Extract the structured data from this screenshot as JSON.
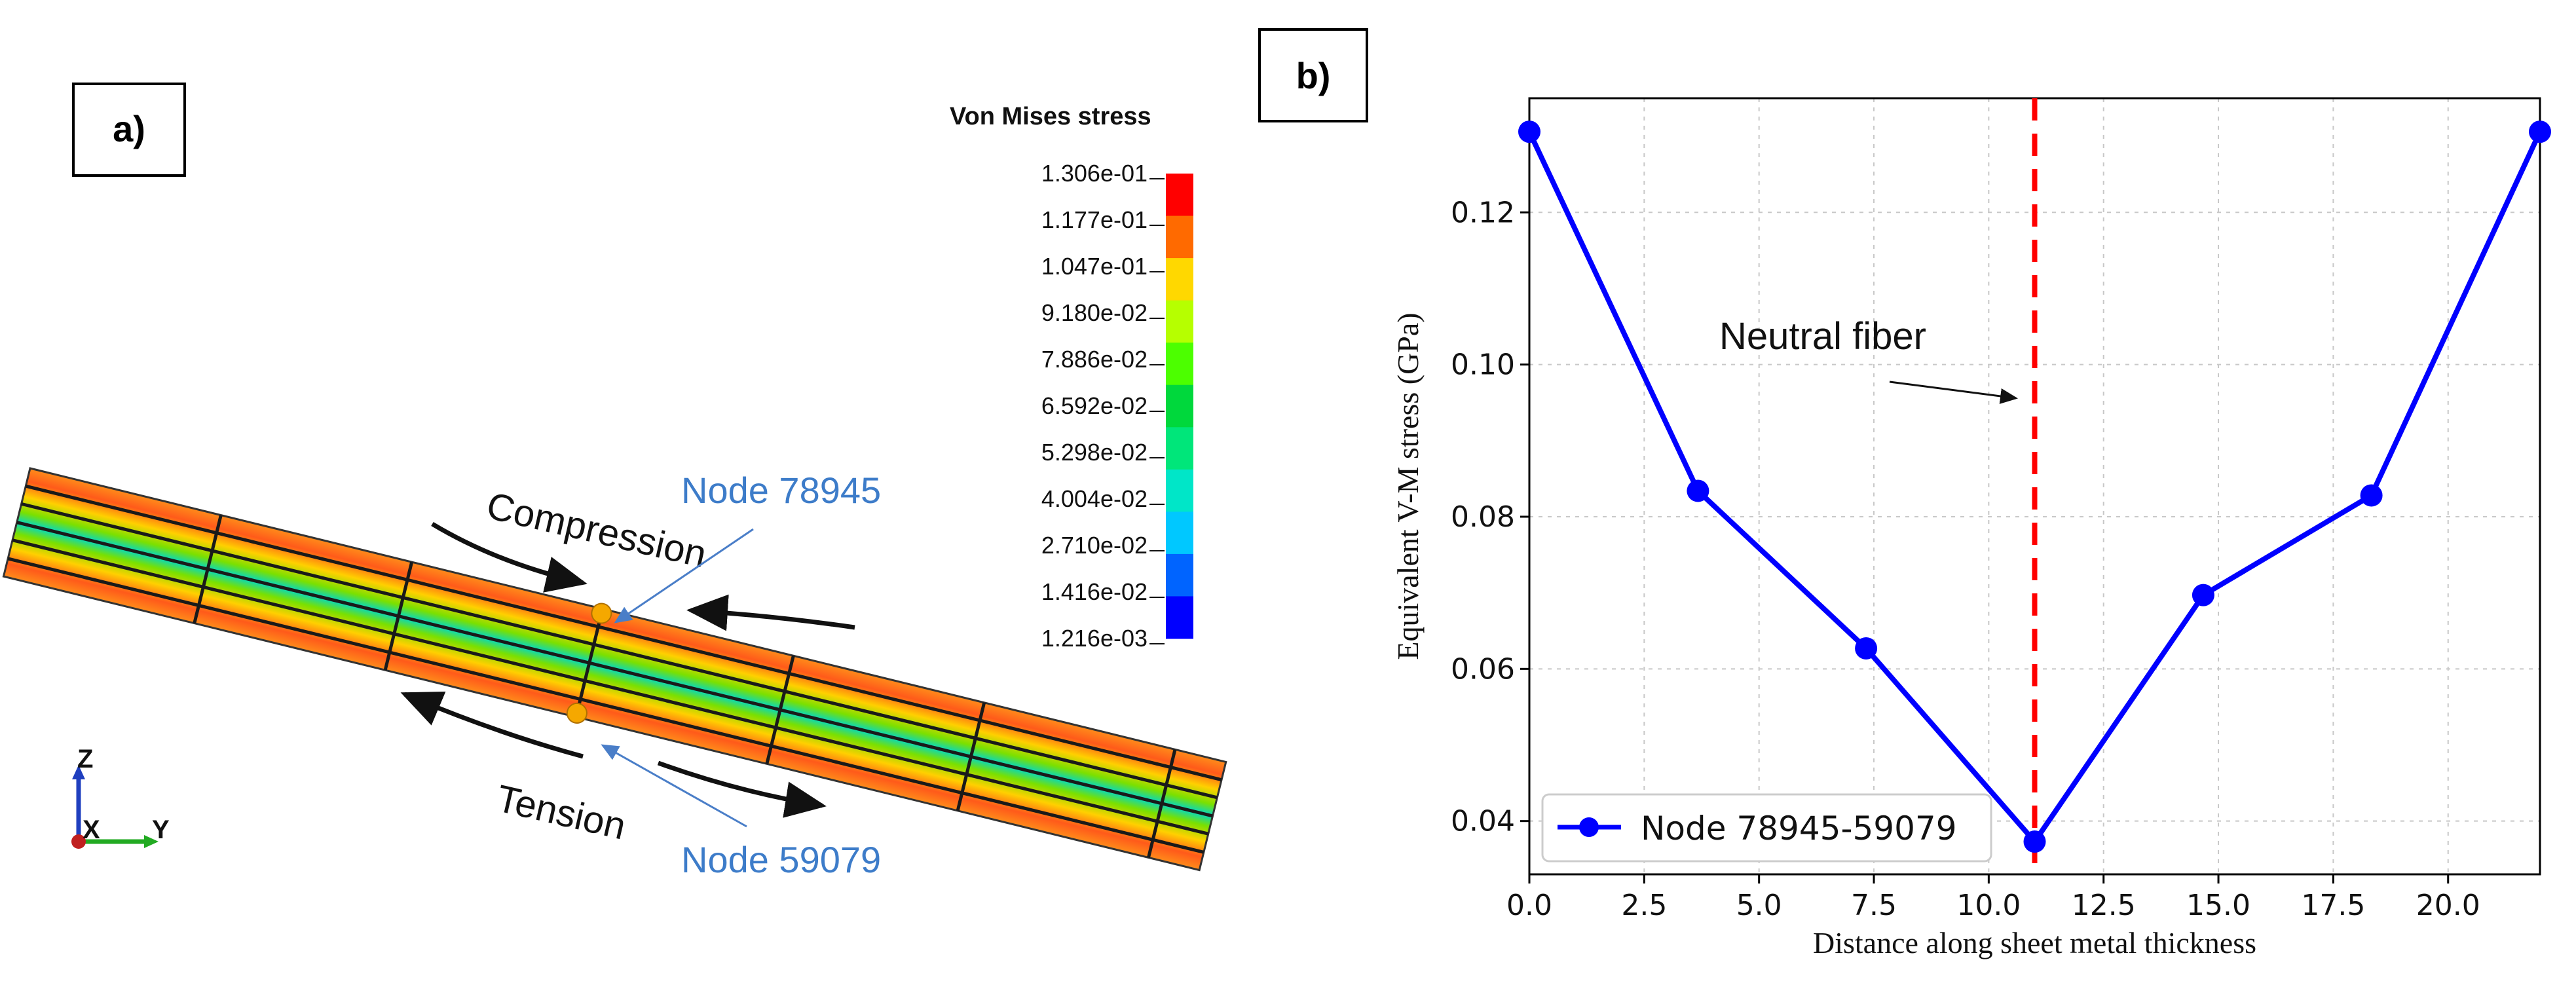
{
  "panel_a": {
    "label": "a)",
    "legend": {
      "title": "Von Mises stress",
      "ticks": [
        "1.306e-01",
        "1.177e-01",
        "1.047e-01",
        "9.180e-02",
        "7.886e-02",
        "6.592e-02",
        "5.298e-02",
        "4.004e-02",
        "2.710e-02",
        "1.416e-02",
        "1.216e-03"
      ],
      "colors": [
        "#ff0000",
        "#ff6a00",
        "#ffd800",
        "#b6ff00",
        "#4cff00",
        "#00d83c",
        "#00e67a",
        "#00e6c8",
        "#00c8ff",
        "#0064ff",
        "#0000ff"
      ]
    },
    "annotations": {
      "compression": "Compression",
      "tension": "Tension",
      "node_top": "Node 78945",
      "node_bottom": "Node 59079"
    },
    "axes": {
      "z": "Z",
      "x": "X",
      "y": "Y"
    },
    "colors": {
      "node_label": "#3d7cc9",
      "node_marker": "#f5a800"
    }
  },
  "panel_b": {
    "label": "b)",
    "annotation": "Neutral fiber",
    "colors": {
      "series": "#0000ff",
      "neutral_line": "#ff0000"
    }
  },
  "chart_data": {
    "type": "line",
    "xlabel": "Distance along sheet metal thickness",
    "ylabel": "Equivalent V-M stress  (GPa)",
    "xlim": [
      0,
      22
    ],
    "ylim": [
      0.033,
      0.135
    ],
    "xticks": [
      "0.0",
      "2.5",
      "5.0",
      "7.5",
      "10.0",
      "12.5",
      "15.0",
      "17.5",
      "20.0"
    ],
    "yticks": [
      "0.04",
      "0.06",
      "0.08",
      "0.10",
      "0.12"
    ],
    "grid": true,
    "legend_position": "bottom-left",
    "series": [
      {
        "name": "Node 78945-59079",
        "x": [
          0.0,
          3.67,
          7.33,
          11.0,
          14.67,
          18.33,
          22.0
        ],
        "y": [
          0.1306,
          0.0834,
          0.0627,
          0.0373,
          0.0697,
          0.0828,
          0.1306
        ]
      }
    ],
    "vline_x": 11.0
  }
}
